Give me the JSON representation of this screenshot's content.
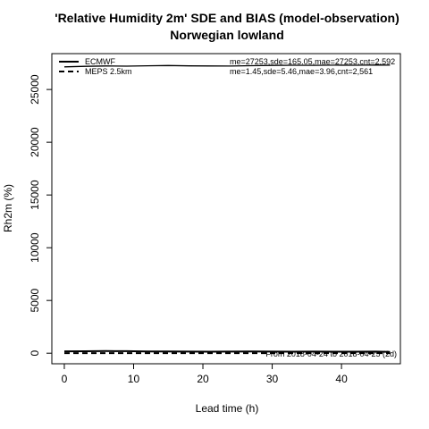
{
  "chart_data": {
    "type": "line",
    "title": "'Relative Humidity 2m' SDE and BIAS (model-observation)",
    "subtitle": "Norwegian lowland",
    "xlabel": "Lead time (h)",
    "ylabel": "Rh2m (%)",
    "xlim": [
      -1.8,
      48.5
    ],
    "ylim": [
      -1000,
      28400
    ],
    "xticks": [
      0,
      10,
      20,
      30,
      40
    ],
    "yticks": [
      0,
      5000,
      10000,
      15000,
      20000,
      25000
    ],
    "grid": false,
    "legend_position": "top-left",
    "note": "From 2018-04-24 to 2018-04-25 (2d)",
    "legend": [
      {
        "label": "ECMWF",
        "stats": "me=27253,sde=165.05,mae=27253,cnt=2,592",
        "line": "solid"
      },
      {
        "label": "MEPS 2.5km",
        "stats": "me=1.45,sde=5.46,mae=3.96,cnt=2,561",
        "line": "dashed"
      }
    ],
    "x": [
      0,
      3,
      6,
      9,
      12,
      15,
      18,
      21,
      24,
      27,
      30,
      33,
      36,
      39,
      42,
      45,
      47
    ],
    "series": [
      {
        "name": "ECMWF",
        "metric": "BIAS",
        "style": "solid",
        "color": "#000000",
        "values": [
          27150,
          27200,
          27230,
          27210,
          27250,
          27270,
          27240,
          27230,
          27220,
          27260,
          27280,
          27300,
          27290,
          27310,
          27300,
          27320,
          27310
        ]
      },
      {
        "name": "ECMWF",
        "metric": "SDE",
        "style": "solid",
        "color": "#000000",
        "values": [
          180,
          190,
          200,
          195,
          170,
          160,
          150,
          140,
          150,
          160,
          150,
          140,
          150,
          140,
          140,
          150,
          130
        ]
      },
      {
        "name": "MEPS 2.5km",
        "metric": "BIAS",
        "style": "dashed",
        "color": "#9a9a9a",
        "values": [
          0,
          0,
          0,
          0,
          0,
          0,
          0,
          0,
          0,
          0,
          0,
          0,
          0,
          0,
          0,
          0,
          0
        ]
      },
      {
        "name": "MEPS 2.5km",
        "metric": "SDE",
        "style": "dashed",
        "color": "#000000",
        "values": [
          5,
          5,
          5,
          5,
          5,
          5,
          5,
          5,
          5,
          5,
          5,
          5,
          5,
          5,
          5,
          5,
          5
        ]
      }
    ]
  }
}
